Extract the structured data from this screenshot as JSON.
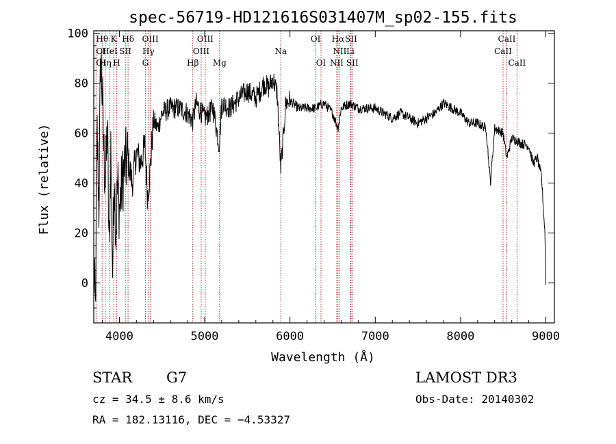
{
  "chart_data": {
    "type": "line",
    "title": "spec-56719-HD121616S031407M_sp02-155.fits",
    "xlabel": "Wavelength (Å)",
    "ylabel": "Flux (relative)",
    "xlim": [
      3700,
      9100
    ],
    "ylim": [
      -16,
      101
    ],
    "xticks": [
      4000,
      5000,
      6000,
      7000,
      8000,
      9000
    ],
    "yticks": [
      0,
      20,
      40,
      60,
      80,
      100
    ],
    "grid": false,
    "lines": [
      {
        "label": "Hθ",
        "x": 3798,
        "row": 0
      },
      {
        "label": "K",
        "x": 3934,
        "row": 0
      },
      {
        "label": "Hδ",
        "x": 4102,
        "row": 0
      },
      {
        "label": "OIII",
        "x": 4363,
        "row": 0
      },
      {
        "label": "OIII",
        "x": 5007,
        "row": 0
      },
      {
        "label": "OI",
        "x": 6300,
        "row": 0
      },
      {
        "label": "Hα",
        "x": 6563,
        "row": 0
      },
      {
        "label": "SII",
        "x": 6716,
        "row": 0
      },
      {
        "label": "CaII",
        "x": 8542,
        "row": 0
      },
      {
        "label": "OI",
        "x": 3727,
        "row": 1
      },
      {
        "label": "HeI",
        "x": 3889,
        "row": 1
      },
      {
        "label": "SII",
        "x": 4070,
        "row": 1
      },
      {
        "label": "Hγ",
        "x": 4340,
        "row": 1
      },
      {
        "label": "OIII",
        "x": 4959,
        "row": 1
      },
      {
        "label": "Na",
        "x": 5893,
        "row": 1
      },
      {
        "label": "NII",
        "x": 6584,
        "row": 1
      },
      {
        "label": "Li",
        "x": 6708,
        "row": 1
      },
      {
        "label": "CaII",
        "x": 8498,
        "row": 1
      },
      {
        "label": "OI",
        "x": 3727,
        "row": 2
      },
      {
        "label": "Hη",
        "x": 3835,
        "row": 2
      },
      {
        "label": "H",
        "x": 3968,
        "row": 2
      },
      {
        "label": "G",
        "x": 4305,
        "row": 2
      },
      {
        "label": "Hβ",
        "x": 4861,
        "row": 2
      },
      {
        "label": "Mg",
        "x": 5175,
        "row": 2
      },
      {
        "label": "OI",
        "x": 6364,
        "row": 2
      },
      {
        "label": "NII",
        "x": 6548,
        "row": 2
      },
      {
        "label": "SII",
        "x": 6731,
        "row": 2
      },
      {
        "label": "CaII",
        "x": 8662,
        "row": 2
      }
    ],
    "line_markers_x": [
      3727,
      3798,
      3835,
      3889,
      3934,
      3968,
      4070,
      4102,
      4305,
      4340,
      4363,
      4861,
      4959,
      5007,
      5175,
      5893,
      6300,
      6364,
      6548,
      6563,
      6584,
      6708,
      6716,
      6731,
      8498,
      8542,
      8662
    ],
    "series": [
      {
        "x": [
          3700,
          3720,
          3740,
          3760,
          3780,
          3800,
          3820,
          3840,
          3860,
          3880,
          3900,
          3920,
          3940,
          3960,
          3980,
          4000,
          4050,
          4100,
          4150,
          4200,
          4250,
          4300,
          4330,
          4360,
          4400,
          4450,
          4500,
          4600,
          4700,
          4800,
          4860,
          4900,
          5000,
          5100,
          5170,
          5200,
          5300,
          5400,
          5500,
          5600,
          5700,
          5750,
          5800,
          5850,
          5893,
          5950,
          6000,
          6100,
          6200,
          6300,
          6400,
          6500,
          6563,
          6600,
          6700,
          6800,
          6900,
          7000,
          7100,
          7200,
          7300,
          7400,
          7500,
          7600,
          7700,
          7800,
          7900,
          8000,
          8100,
          8200,
          8300,
          8350,
          8400,
          8498,
          8542,
          8600,
          8662,
          8700,
          8800,
          8850,
          8900,
          8950,
          8970,
          8990,
          9000
        ],
        "values": [
          5,
          -12,
          60,
          30,
          92,
          75,
          50,
          40,
          65,
          10,
          55,
          5,
          45,
          20,
          40,
          30,
          45,
          50,
          40,
          52,
          48,
          55,
          35,
          45,
          65,
          62,
          68,
          70,
          70,
          68,
          65,
          72,
          66,
          70,
          55,
          72,
          70,
          74,
          77,
          74,
          80,
          78,
          82,
          76,
          45,
          72,
          73,
          70,
          70,
          70,
          72,
          68,
          62,
          70,
          72,
          70,
          70,
          70,
          68,
          66,
          68,
          66,
          64,
          66,
          68,
          72,
          70,
          68,
          64,
          64,
          62,
          40,
          62,
          60,
          50,
          58,
          57,
          56,
          55,
          48,
          50,
          42,
          30,
          20,
          0
        ]
      }
    ]
  },
  "info": {
    "object_class": "STAR",
    "subclass": "G7",
    "survey": "LAMOST DR3",
    "cz": "cz = 34.5 ± 8.6 km/s",
    "obs_date": "Obs-Date: 20140302",
    "coords": "RA = 182.13116, DEC =  −4.53327"
  }
}
